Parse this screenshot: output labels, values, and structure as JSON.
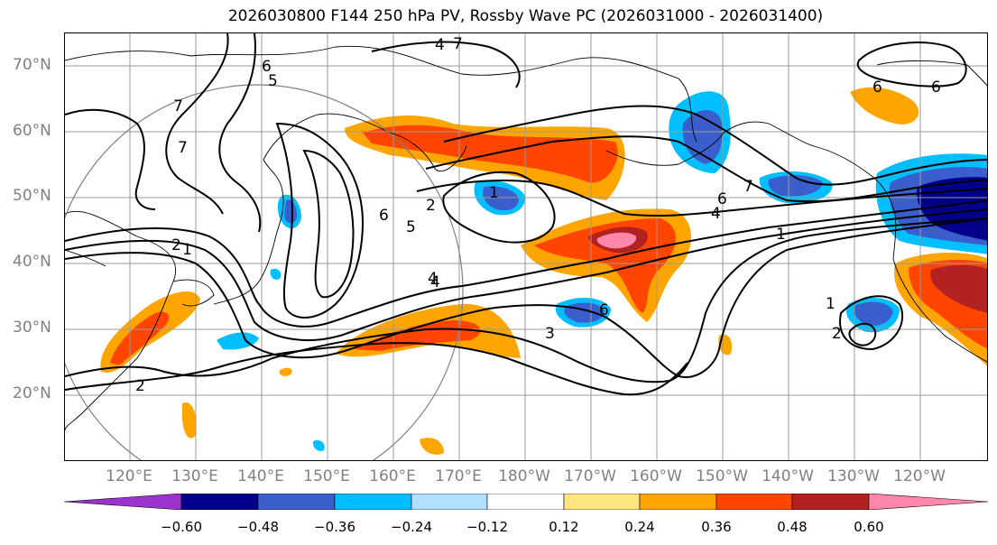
{
  "title": "2026030800 F144 250 hPa PV, Rossby Wave PC (2026031000 - 2026031400)",
  "lat_labels": [
    "70°N",
    "60°N",
    "50°N",
    "40°N",
    "30°N",
    "20°N"
  ],
  "lon_labels": [
    "120°E",
    "130°E",
    "140°E",
    "150°E",
    "160°E",
    "170°E",
    "180°W",
    "170°W",
    "160°W",
    "150°W",
    "140°W",
    "130°W",
    "120°W"
  ],
  "contour_labels": [
    "6",
    "5",
    "4",
    "7",
    "7",
    "7",
    "2",
    "1",
    "6",
    "5",
    "4",
    "2",
    "1",
    "6",
    "7",
    "6",
    "4",
    "1",
    "6",
    "3",
    "4",
    "2",
    "1",
    "2",
    "6"
  ],
  "colorbar": {
    "colors": [
      "#9933cc",
      "#00008b",
      "#3a5fcd",
      "#00bfff",
      "#b0e0ff",
      "#ffffff",
      "#ffe680",
      "#ffa500",
      "#ff4500",
      "#b22222",
      "#ff88aa"
    ],
    "ticks": [
      "−0.60",
      "−0.48",
      "−0.36",
      "−0.24",
      "−0.12",
      "0.12",
      "0.24",
      "0.36",
      "0.48",
      "0.60"
    ]
  },
  "palette": {
    "strong_negative": "#00008b",
    "negative": "#3a5fcd",
    "weak_negative": "#00bfff",
    "weaker_negative": "#b0e0ff",
    "weak_positive": "#ffe680",
    "positive": "#ffa500",
    "stronger_positive": "#ff4500",
    "strong_positive": "#b22222",
    "max_positive": "#ff88aa"
  }
}
